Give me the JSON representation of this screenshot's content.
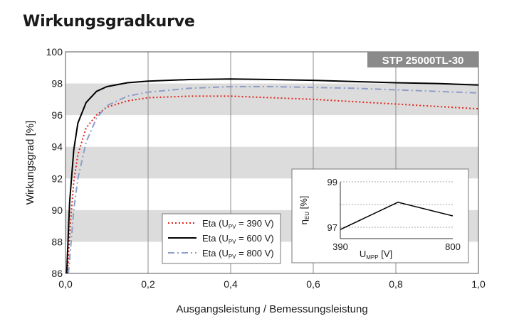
{
  "title": "Wirkungsgradkurve",
  "chart_data": [
    {
      "type": "line",
      "badge": "STP 25000TL-30",
      "xlabel": "Ausgangsleistung / Bemessungsleistung",
      "ylabel": "Wirkungsgrad [%]",
      "xlim": [
        0,
        1
      ],
      "ylim": [
        86,
        100
      ],
      "x_ticks": [
        "0,0",
        "0,2",
        "0,4",
        "0,6",
        "0,8",
        "1,0"
      ],
      "y_ticks": [
        "86",
        "88",
        "90",
        "92",
        "94",
        "96",
        "98",
        "100"
      ],
      "grid": "vertical lines, horizontal grey bands",
      "legend_position": "lower-center",
      "series": [
        {
          "name": "Eta (U_PV = 390 V)",
          "legend": {
            "prefix": "Eta (U",
            "sub": "PV",
            "suffix": " = 390 V)"
          },
          "color": "#e2231a",
          "style": "dotted",
          "points": [
            [
              0.005,
              86.0
            ],
            [
              0.01,
              88.5
            ],
            [
              0.02,
              91.8
            ],
            [
              0.03,
              93.5
            ],
            [
              0.05,
              95.2
            ],
            [
              0.075,
              96.0
            ],
            [
              0.1,
              96.5
            ],
            [
              0.15,
              96.9
            ],
            [
              0.2,
              97.1
            ],
            [
              0.3,
              97.2
            ],
            [
              0.4,
              97.2
            ],
            [
              0.5,
              97.1
            ],
            [
              0.6,
              97.0
            ],
            [
              0.7,
              96.85
            ],
            [
              0.8,
              96.7
            ],
            [
              0.9,
              96.55
            ],
            [
              1.0,
              96.4
            ]
          ]
        },
        {
          "name": "Eta (U_PV = 600 V)",
          "legend": {
            "prefix": "Eta (U",
            "sub": "PV",
            "suffix": " = 600 V)"
          },
          "color": "#000000",
          "style": "solid",
          "points": [
            [
              0.003,
              86.0
            ],
            [
              0.006,
              88.0
            ],
            [
              0.01,
              90.5
            ],
            [
              0.02,
              93.8
            ],
            [
              0.03,
              95.5
            ],
            [
              0.05,
              96.8
            ],
            [
              0.075,
              97.5
            ],
            [
              0.1,
              97.8
            ],
            [
              0.15,
              98.05
            ],
            [
              0.2,
              98.15
            ],
            [
              0.3,
              98.25
            ],
            [
              0.4,
              98.28
            ],
            [
              0.5,
              98.25
            ],
            [
              0.6,
              98.2
            ],
            [
              0.7,
              98.12
            ],
            [
              0.8,
              98.05
            ],
            [
              0.9,
              98.0
            ],
            [
              1.0,
              97.9
            ]
          ]
        },
        {
          "name": "Eta (U_PV = 800 V)",
          "legend": {
            "prefix": "Eta (U",
            "sub": "PV",
            "suffix": " = 800 V)"
          },
          "color": "#8f9ec8",
          "style": "dashdot",
          "points": [
            [
              0.007,
              86.0
            ],
            [
              0.012,
              87.5
            ],
            [
              0.02,
              90.0
            ],
            [
              0.03,
              92.0
            ],
            [
              0.05,
              94.3
            ],
            [
              0.075,
              95.8
            ],
            [
              0.1,
              96.6
            ],
            [
              0.15,
              97.2
            ],
            [
              0.2,
              97.45
            ],
            [
              0.3,
              97.7
            ],
            [
              0.4,
              97.8
            ],
            [
              0.5,
              97.8
            ],
            [
              0.6,
              97.75
            ],
            [
              0.7,
              97.7
            ],
            [
              0.8,
              97.6
            ],
            [
              0.9,
              97.5
            ],
            [
              1.0,
              97.4
            ]
          ]
        }
      ]
    },
    {
      "type": "line",
      "xlabel": {
        "prefix": "U",
        "sub": "MPP",
        "suffix": " [V]"
      },
      "ylabel": {
        "prefix": "η",
        "sub": "EU",
        "suffix": " [%]"
      },
      "xlim": [
        390,
        800
      ],
      "ylim": [
        96.5,
        99
      ],
      "x_ticks": [
        "390",
        "800"
      ],
      "y_ticks": [
        "97",
        "99"
      ],
      "series": [
        {
          "color": "#000000",
          "points": [
            [
              390,
              96.9
            ],
            [
              600,
              98.1
            ],
            [
              800,
              97.5
            ]
          ]
        }
      ]
    }
  ]
}
